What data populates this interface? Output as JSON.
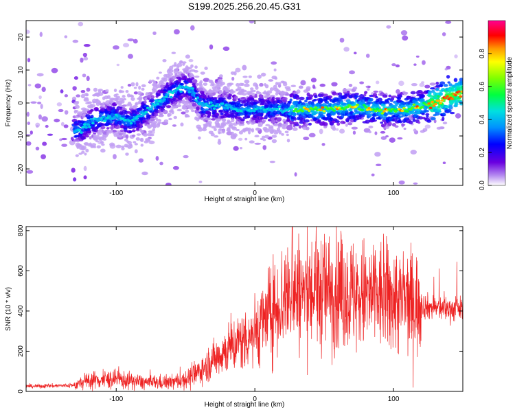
{
  "title": "S199.2025.256.20.45.G31",
  "colors": {
    "snr_line": "#ee2222",
    "background": "#ffffff",
    "axes": "#000000"
  },
  "chart_data": [
    {
      "type": "heatmap",
      "xlabel": "Height of straight line (km)",
      "ylabel": "Frequency (Hz)",
      "xlim": [
        -165,
        150
      ],
      "ylim": [
        -25,
        25
      ],
      "xticks": [
        -100,
        0,
        100
      ],
      "yticks": [
        -20,
        -10,
        0,
        10,
        20
      ],
      "ridge": {
        "description": "High-amplitude frequency ridge traced across heights",
        "x": [
          -125,
          -115,
          -100,
          -90,
          -80,
          -70,
          -60,
          -52,
          -45,
          -40,
          -35,
          -20,
          -10,
          0,
          10,
          20,
          30,
          50,
          70,
          90,
          110,
          120,
          130,
          140,
          150
        ],
        "y": [
          -8,
          -5,
          -4,
          -6,
          -3,
          0,
          3,
          5,
          4,
          0,
          -1,
          -1,
          -2,
          -2,
          -2,
          -2,
          -2,
          -2,
          -1,
          -2,
          -2,
          -1,
          0,
          2,
          3
        ]
      },
      "colorbar": {
        "label": "Normalized spectral amplitude",
        "ticks": [
          "0.0",
          "0.2",
          "0.4",
          "0.6",
          "0.8"
        ],
        "range": [
          0,
          1
        ]
      }
    },
    {
      "type": "line",
      "xlabel": "Height of straight line (km)",
      "ylabel": "SNR (10 * v/v)",
      "xlim": [
        -165,
        150
      ],
      "ylim": [
        0,
        820
      ],
      "xticks": [
        -100,
        0,
        100
      ],
      "yticks": [
        0,
        200,
        400,
        600,
        800
      ],
      "envelope": {
        "description": "Approximate mean SNR vs height (noisy trace oscillates around these values)",
        "x": [
          -165,
          -130,
          -120,
          -100,
          -80,
          -60,
          -45,
          -35,
          -20,
          -10,
          0,
          10,
          20,
          30,
          50,
          70,
          90,
          110,
          125,
          140,
          150
        ],
        "y": [
          25,
          30,
          55,
          60,
          45,
          45,
          70,
          130,
          210,
          250,
          300,
          380,
          460,
          490,
          500,
          480,
          470,
          450,
          420,
          410,
          410
        ]
      },
      "peak": {
        "x": 27,
        "y": 820
      }
    }
  ]
}
